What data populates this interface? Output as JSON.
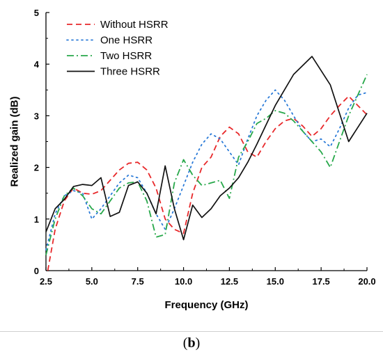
{
  "caption": {
    "open": "(",
    "letter": "b",
    "close": ")"
  },
  "chart_data": {
    "type": "line",
    "title": "",
    "xlabel": "Frequency (GHz)",
    "ylabel": "Realized gain (dB)",
    "xlim": [
      2.5,
      20.0
    ],
    "ylim": [
      0,
      5
    ],
    "xticks": [
      "2.5",
      "5.0",
      "7.5",
      "10.0",
      "12.5",
      "15.0",
      "17.5",
      "20.0"
    ],
    "yticks": [
      "0",
      "1",
      "2",
      "3",
      "4",
      "5"
    ],
    "grid": false,
    "legend": "top-left",
    "series": [
      {
        "name": "Without HSRR",
        "color": "#e8282a",
        "dash": "8,5",
        "x": [
          2.6,
          3.0,
          3.5,
          4.0,
          4.5,
          5.0,
          5.5,
          6.0,
          6.5,
          7.0,
          7.5,
          8.0,
          8.5,
          9.0,
          9.5,
          10.0,
          10.5,
          11.0,
          11.5,
          12.0,
          12.5,
          13.0,
          13.5,
          14.0,
          14.5,
          15.0,
          15.5,
          16.0,
          16.5,
          17.0,
          17.5,
          18.0,
          18.5,
          19.0,
          19.5,
          20.0
        ],
        "y": [
          0.0,
          0.8,
          1.35,
          1.6,
          1.5,
          1.48,
          1.55,
          1.75,
          1.95,
          2.08,
          2.1,
          1.95,
          1.6,
          1.0,
          0.8,
          0.72,
          1.5,
          2.0,
          2.2,
          2.6,
          2.78,
          2.65,
          2.3,
          2.2,
          2.5,
          2.75,
          2.9,
          2.95,
          2.8,
          2.6,
          2.75,
          3.0,
          3.2,
          3.38,
          3.2,
          3.02
        ]
      },
      {
        "name": "One HSRR",
        "color": "#2b7bd8",
        "dash": "2,5",
        "x": [
          2.5,
          3.0,
          3.5,
          4.0,
          4.5,
          5.0,
          5.5,
          6.0,
          6.5,
          7.0,
          7.5,
          8.0,
          8.5,
          9.0,
          9.5,
          10.0,
          10.5,
          11.0,
          11.5,
          12.0,
          12.5,
          13.0,
          13.5,
          14.0,
          14.5,
          15.0,
          15.5,
          16.0,
          16.5,
          17.0,
          17.5,
          18.0,
          18.5,
          19.0,
          19.5,
          20.0
        ],
        "y": [
          0.4,
          1.1,
          1.45,
          1.55,
          1.5,
          1.0,
          1.2,
          1.45,
          1.7,
          1.85,
          1.8,
          1.5,
          1.1,
          0.8,
          1.2,
          1.65,
          2.1,
          2.45,
          2.65,
          2.55,
          2.3,
          2.05,
          2.55,
          3.0,
          3.3,
          3.5,
          3.3,
          3.0,
          2.7,
          2.5,
          2.55,
          2.4,
          2.75,
          3.15,
          3.4,
          3.45
        ]
      },
      {
        "name": "Two HSRR",
        "color": "#27a84a",
        "dash": "10,4,2,4",
        "x": [
          2.5,
          3.0,
          3.5,
          4.0,
          4.5,
          5.0,
          5.5,
          6.0,
          6.5,
          7.0,
          7.5,
          8.0,
          8.5,
          9.0,
          9.5,
          10.0,
          10.5,
          11.0,
          11.5,
          12.0,
          12.5,
          13.0,
          13.5,
          14.0,
          14.5,
          15.0,
          15.5,
          16.0,
          16.5,
          17.0,
          17.5,
          18.0,
          18.5,
          19.0,
          19.5,
          20.0
        ],
        "y": [
          0.3,
          1.0,
          1.45,
          1.6,
          1.45,
          1.2,
          1.1,
          1.35,
          1.6,
          1.7,
          1.72,
          1.35,
          0.65,
          0.7,
          1.7,
          2.15,
          1.85,
          1.65,
          1.7,
          1.75,
          1.4,
          2.2,
          2.5,
          2.85,
          2.95,
          3.1,
          3.05,
          2.9,
          2.7,
          2.5,
          2.3,
          2.0,
          2.5,
          3.0,
          3.4,
          3.8
        ]
      },
      {
        "name": "Three HSRR",
        "color": "#111111",
        "dash": "",
        "x": [
          2.5,
          3.0,
          3.5,
          4.0,
          4.5,
          5.0,
          5.5,
          6.0,
          6.5,
          7.0,
          7.5,
          8.0,
          8.5,
          9.0,
          9.5,
          10.0,
          10.5,
          11.0,
          11.5,
          12.0,
          12.5,
          13.0,
          13.5,
          14.0,
          15.0,
          16.0,
          17.0,
          18.0,
          19.0,
          20.0
        ],
        "y": [
          0.75,
          1.2,
          1.38,
          1.63,
          1.67,
          1.65,
          1.8,
          1.05,
          1.13,
          1.65,
          1.72,
          1.5,
          1.1,
          2.03,
          1.2,
          0.6,
          1.27,
          1.03,
          1.2,
          1.45,
          1.6,
          1.8,
          2.1,
          2.45,
          3.2,
          3.8,
          4.15,
          3.6,
          2.5,
          3.05
        ]
      }
    ]
  }
}
